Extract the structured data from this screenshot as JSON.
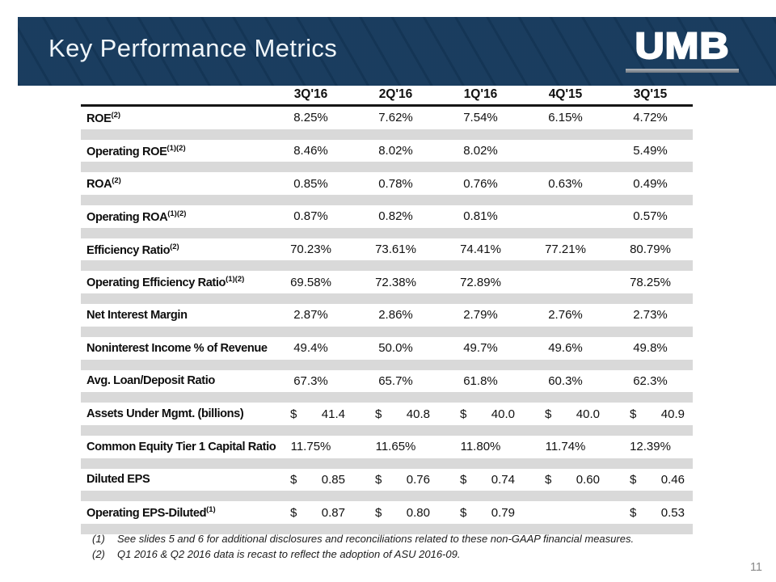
{
  "header": {
    "title": "Key Performance Metrics",
    "logo": "UMB"
  },
  "colors": {
    "banner_navy": "#16395c",
    "separator_band": "#d9d9d9",
    "header_rule": "#161616",
    "logo_underline_gradient": [
      "#b0b6bc",
      "#6d757e"
    ]
  },
  "table": {
    "currency_symbol": "$",
    "columns": [
      "3Q'16",
      "2Q'16",
      "1Q'16",
      "4Q'15",
      "3Q'15"
    ],
    "rows": [
      {
        "label": "ROE",
        "sup": "(2)",
        "dollar": false,
        "values": [
          "8.25%",
          "7.62%",
          "7.54%",
          "6.15%",
          "4.72%"
        ]
      },
      {
        "label": "Operating ROE",
        "sup": "(1)(2)",
        "dollar": false,
        "values": [
          "8.46%",
          "8.02%",
          "8.02%",
          "",
          "5.49%"
        ]
      },
      {
        "label": "ROA",
        "sup": "(2)",
        "dollar": false,
        "values": [
          "0.85%",
          "0.78%",
          "0.76%",
          "0.63%",
          "0.49%"
        ]
      },
      {
        "label": "Operating ROA",
        "sup": "(1)(2)",
        "dollar": false,
        "values": [
          "0.87%",
          "0.82%",
          "0.81%",
          "",
          "0.57%"
        ]
      },
      {
        "label": "Efficiency Ratio",
        "sup": "(2)",
        "dollar": false,
        "values": [
          "70.23%",
          "73.61%",
          "74.41%",
          "77.21%",
          "80.79%"
        ]
      },
      {
        "label": "Operating Efficiency Ratio",
        "sup": "(1)(2)",
        "dollar": false,
        "values": [
          "69.58%",
          "72.38%",
          "72.89%",
          "",
          "78.25%"
        ]
      },
      {
        "label": "Net Interest Margin",
        "sup": "",
        "dollar": false,
        "values": [
          "2.87%",
          "2.86%",
          "2.79%",
          "2.76%",
          "2.73%"
        ]
      },
      {
        "label": "Noninterest Income % of Revenue",
        "sup": "",
        "dollar": false,
        "values": [
          "49.4%",
          "50.0%",
          "49.7%",
          "49.6%",
          "49.8%"
        ]
      },
      {
        "label": "Avg. Loan/Deposit Ratio",
        "sup": "",
        "dollar": false,
        "values": [
          "67.3%",
          "65.7%",
          "61.8%",
          "60.3%",
          "62.3%"
        ]
      },
      {
        "label": "Assets Under Mgmt. (billions)",
        "sup": "",
        "dollar": true,
        "values": [
          "41.4",
          "40.8",
          "40.0",
          "40.0",
          "40.9"
        ]
      },
      {
        "label": "Common Equity Tier 1 Capital Ratio",
        "sup": "",
        "dollar": false,
        "values": [
          "11.75%",
          "11.65%",
          "11.80%",
          "11.74%",
          "12.39%"
        ]
      },
      {
        "label": "Diluted EPS",
        "sup": "",
        "dollar": true,
        "values": [
          "0.85",
          "0.76",
          "0.74",
          "0.60",
          "0.46"
        ]
      },
      {
        "label": "Operating EPS-Diluted",
        "sup": "(1)",
        "dollar": true,
        "values": [
          "0.87",
          "0.80",
          "0.79",
          "",
          "0.53"
        ]
      }
    ]
  },
  "footnotes": [
    {
      "marker": "(1)",
      "text": "See slides 5 and 6 for additional disclosures and reconciliations related to these non-GAAP financial measures."
    },
    {
      "marker": "(2)",
      "text": "Q1 2016 & Q2 2016 data is recast to reflect the adoption of ASU 2016-09."
    }
  ],
  "page_number": "11"
}
